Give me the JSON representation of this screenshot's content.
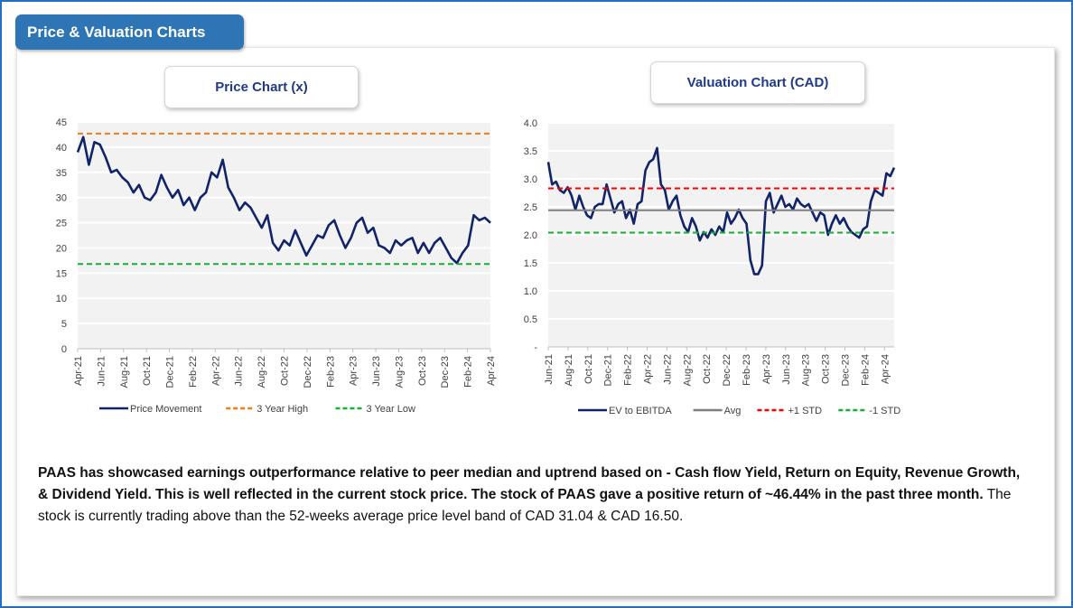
{
  "header": {
    "title": "Price & Valuation Charts"
  },
  "colors": {
    "navy": "#10236b",
    "orange": "#f07d1d",
    "green": "#16b035",
    "red": "#ff0000",
    "grey": "#7f7f7f",
    "tab": "#2e75b6"
  },
  "chart_data": [
    {
      "type": "line",
      "title": "Price Chart (x)",
      "ylim": [
        0,
        45
      ],
      "yticks": [
        "0",
        "5",
        "10",
        "15",
        "20",
        "25",
        "30",
        "35",
        "40",
        "45"
      ],
      "xticks": [
        "Apr-21",
        "Jun-21",
        "Aug-21",
        "Oct-21",
        "Dec-21",
        "Feb-22",
        "Apr-22",
        "Jun-22",
        "Aug-22",
        "Oct-22",
        "Dec-22",
        "Feb-23",
        "Apr-23",
        "Jun-23",
        "Aug-23",
        "Oct-23",
        "Dec-23",
        "Feb-24",
        "Apr-24"
      ],
      "series": [
        {
          "name": "Price Movement",
          "values": [
            39,
            42,
            36.5,
            41,
            40.5,
            38,
            35,
            35.5,
            34,
            33,
            31,
            32.5,
            30,
            29.5,
            31,
            34.5,
            32,
            30,
            31.5,
            28.5,
            30,
            27.5,
            30,
            31,
            35,
            34,
            37.5,
            32,
            30,
            27.5,
            29,
            28,
            26,
            24,
            26.5,
            21,
            19.5,
            21.5,
            20.5,
            23.5,
            21,
            18.5,
            20.5,
            22.5,
            22,
            24.5,
            25.5,
            22.5,
            20,
            22,
            25,
            26,
            23,
            24,
            20.5,
            20,
            19,
            21.5,
            20.5,
            21.5,
            22,
            19,
            21,
            19,
            21,
            22,
            20,
            18,
            17,
            19,
            20.5,
            26.5,
            25.5,
            26,
            25
          ]
        },
        {
          "name": "3 Year High",
          "value": 42.7
        },
        {
          "name": "3 Year Low",
          "value": 16.8
        }
      ]
    },
    {
      "type": "line",
      "title": "Valuation Chart (CAD)",
      "ylim": [
        0,
        4
      ],
      "yticks": [
        "-",
        "0.5",
        "1.0",
        "1.5",
        "2.0",
        "2.5",
        "3.0",
        "3.5",
        "4.0"
      ],
      "xticks": [
        "Jun-21",
        "Aug-21",
        "Oct-21",
        "Dec-21",
        "Feb-22",
        "Apr-22",
        "Jun-22",
        "Aug-22",
        "Oct-22",
        "Dec-22",
        "Feb-23",
        "Apr-23",
        "Jun-23",
        "Aug-23",
        "Oct-23",
        "Dec-23",
        "Feb-24",
        "Apr-24"
      ],
      "series": [
        {
          "name": "EV to EBITDA",
          "values": [
            3.3,
            2.9,
            2.95,
            2.8,
            2.75,
            2.85,
            2.7,
            2.45,
            2.7,
            2.5,
            2.35,
            2.3,
            2.5,
            2.55,
            2.55,
            2.9,
            2.65,
            2.4,
            2.55,
            2.6,
            2.3,
            2.45,
            2.2,
            2.55,
            2.6,
            3.15,
            3.3,
            3.35,
            3.55,
            2.9,
            2.8,
            2.45,
            2.6,
            2.7,
            2.35,
            2.15,
            2.05,
            2.3,
            2.15,
            1.9,
            2.05,
            1.95,
            2.1,
            2.0,
            2.15,
            2.05,
            2.4,
            2.2,
            2.3,
            2.45,
            2.3,
            2.2,
            1.55,
            1.3,
            1.3,
            1.45,
            2.6,
            2.75,
            2.4,
            2.55,
            2.7,
            2.5,
            2.55,
            2.45,
            2.65,
            2.55,
            2.5,
            2.55,
            2.4,
            2.25,
            2.4,
            2.35,
            2.0,
            2.2,
            2.35,
            2.2,
            2.3,
            2.15,
            2.05,
            2.0,
            1.95,
            2.1,
            2.15,
            2.6,
            2.8,
            2.75,
            2.7,
            3.1,
            3.05,
            3.2
          ]
        },
        {
          "name": "Avg",
          "value": 2.44
        },
        {
          "name": "+1 STD",
          "value": 2.83
        },
        {
          "name": "-1 STD",
          "value": 2.04
        }
      ]
    }
  ],
  "description": {
    "bold": "PAAS has showcased earnings outperformance relative to peer median and uptrend based on - Cash flow Yield, Return on Equity, Revenue Growth,  & Dividend Yield. This is well reflected in the current stock price. The stock of PAAS gave a positive return of ~46.44% in the past three month.",
    "normal": " The stock is currently trading above than the 52-weeks average price level band of CAD 31.04 & CAD 16.50."
  }
}
